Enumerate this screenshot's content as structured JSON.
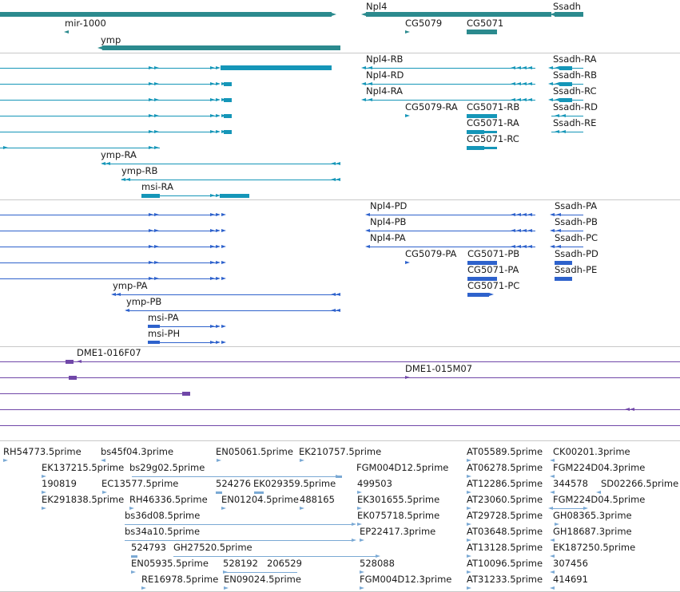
{
  "colors": {
    "gene": "#2b8a8e",
    "transcript_cyan": "#1596b8",
    "transcript_blue": "#2e62cc",
    "clone": "#7047a8",
    "est": "#7aa9d4"
  },
  "tracks": {
    "genes": {
      "labels": {
        "npl4": "Npl4",
        "ssadh": "Ssadh",
        "mir1000": "mir-1000",
        "cg5079": "CG5079",
        "cg5071": "CG5071",
        "ymp": "ymp"
      }
    },
    "transcripts_r": {
      "labels": {
        "npl4_rb": "Npl4-RB",
        "npl4_rd": "Npl4-RD",
        "npl4_ra": "Npl4-RA",
        "cg5079_ra": "CG5079-RA",
        "cg5071_rb": "CG5071-RB",
        "cg5071_ra": "CG5071-RA",
        "cg5071_rc": "CG5071-RC",
        "ssadh_ra": "Ssadh-RA",
        "ssadh_rb": "Ssadh-RB",
        "ssadh_rc": "Ssadh-RC",
        "ssadh_rd": "Ssadh-RD",
        "ssadh_re": "Ssadh-RE",
        "ymp_ra": "ymp-RA",
        "ymp_rb": "ymp-RB",
        "msi_ra": "msi-RA"
      }
    },
    "transcripts_p": {
      "labels": {
        "npl4_pd": "Npl4-PD",
        "npl4_pb": "Npl4-PB",
        "npl4_pa": "Npl4-PA",
        "cg5079_pa": "CG5079-PA",
        "cg5071_pb": "CG5071-PB",
        "cg5071_pa": "CG5071-PA",
        "cg5071_pc": "CG5071-PC",
        "ssadh_pa": "Ssadh-PA",
        "ssadh_pb": "Ssadh-PB",
        "ssadh_pc": "Ssadh-PC",
        "ssadh_pd": "Ssadh-PD",
        "ssadh_pe": "Ssadh-PE",
        "ymp_pa": "ymp-PA",
        "ymp_pb": "ymp-PB",
        "msi_pa": "msi-PA",
        "msi_ph": "msi-PH"
      }
    },
    "clones": {
      "labels": {
        "dme1_016f07": "DME1-016F07",
        "dme1_015m07": "DME1-015M07"
      }
    },
    "ests": {
      "labels": [
        "RH54773.5prime",
        "bs45f04.3prime",
        "EN05061.5prime",
        "EK210757.5prime",
        "AT05589.5prime",
        "CK00201.3prime",
        "EK137215.5prime",
        "bs29g02.5prime",
        "FGM004D12.5prime",
        "AT06278.5prime",
        "FGM224D04.3prime",
        "190819",
        "EC13577.5prime",
        "524276",
        "EK029359.5prime",
        "499503",
        "AT12286.5prime",
        "344578",
        "SD02266.5prime",
        "EK291838.5prime",
        "RH46336.5prime",
        "EN01204.5prime",
        "488165",
        "EK301655.5prime",
        "AT23060.5prime",
        "FGM224D04.5prime",
        "bs36d08.5prime",
        "EK075718.5prime",
        "AT29728.5prime",
        "GH08365.3prime",
        "bs34a10.5prime",
        "EP22417.3prime",
        "AT03648.5prime",
        "GH18687.3prime",
        "524793",
        "GH27520.5prime",
        "AT13128.5prime",
        "EK187250.5prime",
        "EN05935.5prime",
        "528192",
        "206529",
        "528088",
        "AT10096.5prime",
        "307456",
        "RE16978.5prime",
        "EN09024.5prime",
        "FGM004D12.3prime",
        "AT31233.5prime",
        "414691"
      ]
    }
  }
}
